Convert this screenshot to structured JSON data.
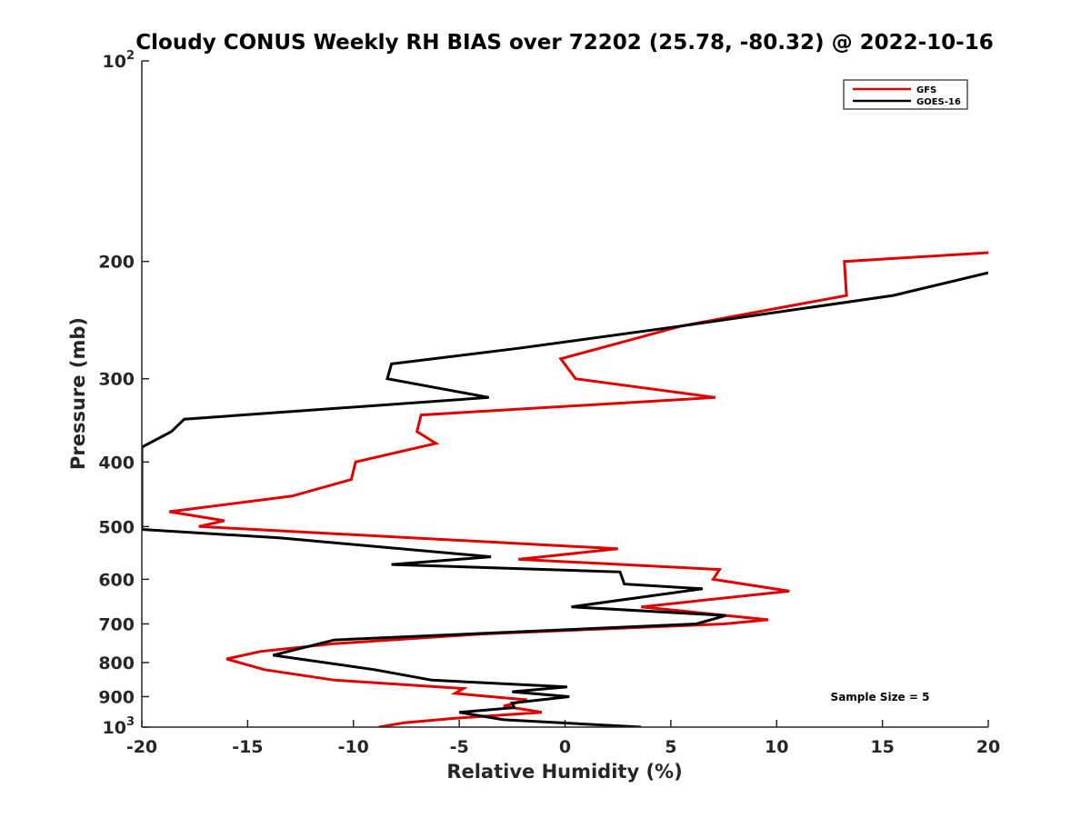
{
  "chart_data": {
    "type": "line",
    "title": "Cloudy CONUS Weekly RH BIAS over 72202 (25.78, -80.32) @ 2022-10-16",
    "xlabel": "Relative Humidity (%)",
    "ylabel": "Pressure (mb)",
    "xlim": [
      -20,
      20
    ],
    "ylim": [
      1000,
      100
    ],
    "yscale": "log",
    "y_reversed": true,
    "x_ticks": [
      "-20",
      "-15",
      "-10",
      "-5",
      "0",
      "5",
      "10",
      "15",
      "20"
    ],
    "x_tick_values": [
      -20,
      -15,
      -10,
      -5,
      0,
      5,
      10,
      15,
      20
    ],
    "y_ticks": [
      {
        "value": 100,
        "base": "10",
        "exp": "2"
      },
      {
        "value": 200,
        "label": "200"
      },
      {
        "value": 300,
        "label": "300"
      },
      {
        "value": 400,
        "label": "400"
      },
      {
        "value": 500,
        "label": "500"
      },
      {
        "value": 600,
        "label": "600"
      },
      {
        "value": 700,
        "label": "700"
      },
      {
        "value": 800,
        "label": "800"
      },
      {
        "value": 900,
        "label": "900"
      },
      {
        "value": 1000,
        "base": "10",
        "exp": "3"
      }
    ],
    "legend": {
      "position": "top-right"
    },
    "annotation": "Sample Size = 5",
    "series": [
      {
        "name": "GFS",
        "color": "#e00000",
        "points": [
          [
            20.0,
            194
          ],
          [
            13.2,
            200
          ],
          [
            13.3,
            225
          ],
          [
            5.5,
            250
          ],
          [
            -0.2,
            280
          ],
          [
            0.5,
            300
          ],
          [
            7.1,
            320
          ],
          [
            -6.8,
            340
          ],
          [
            -7.0,
            360
          ],
          [
            -6.1,
            375
          ],
          [
            -9.9,
            400
          ],
          [
            -10.1,
            425
          ],
          [
            -12.9,
            450
          ],
          [
            -18.7,
            475
          ],
          [
            -16.1,
            490
          ],
          [
            -17.3,
            500
          ],
          [
            2.5,
            540
          ],
          [
            -2.2,
            560
          ],
          [
            7.3,
            580
          ],
          [
            7.0,
            600
          ],
          [
            10.6,
            625
          ],
          [
            3.6,
            660
          ],
          [
            9.6,
            690
          ],
          [
            7.5,
            700
          ],
          [
            -4.0,
            725
          ],
          [
            -11.0,
            750
          ],
          [
            -14.4,
            770
          ],
          [
            -16.0,
            790
          ],
          [
            -14.2,
            820
          ],
          [
            -10.9,
            850
          ],
          [
            -4.8,
            875
          ],
          [
            -5.2,
            890
          ],
          [
            -1.8,
            910
          ],
          [
            -2.9,
            930
          ],
          [
            -1.1,
            950
          ],
          [
            -5.2,
            970
          ],
          [
            -7.6,
            985
          ],
          [
            -8.8,
            1000
          ]
        ]
      },
      {
        "name": "GOES-16",
        "color": "#000000",
        "points": [
          [
            20.0,
            208
          ],
          [
            15.5,
            225
          ],
          [
            5.5,
            250
          ],
          [
            -2.2,
            270
          ],
          [
            -8.2,
            285
          ],
          [
            -8.4,
            300
          ],
          [
            -3.6,
            320
          ],
          [
            -18.0,
            345
          ],
          [
            -18.6,
            360
          ],
          [
            -20.0,
            380
          ],
          [
            -20.0,
            505
          ],
          [
            -13.5,
            520
          ],
          [
            -3.5,
            555
          ],
          [
            -8.2,
            570
          ],
          [
            2.6,
            585
          ],
          [
            2.8,
            610
          ],
          [
            6.5,
            620
          ],
          [
            0.3,
            660
          ],
          [
            7.6,
            680
          ],
          [
            6.2,
            700
          ],
          [
            -10.9,
            740
          ],
          [
            -13.8,
            780
          ],
          [
            -9.0,
            820
          ],
          [
            -6.3,
            850
          ],
          [
            0.1,
            870
          ],
          [
            -2.5,
            885
          ],
          [
            0.2,
            900
          ],
          [
            -2.5,
            920
          ],
          [
            -2.4,
            935
          ],
          [
            -5.0,
            950
          ],
          [
            -2.9,
            975
          ],
          [
            3.6,
            1000
          ]
        ]
      }
    ]
  }
}
